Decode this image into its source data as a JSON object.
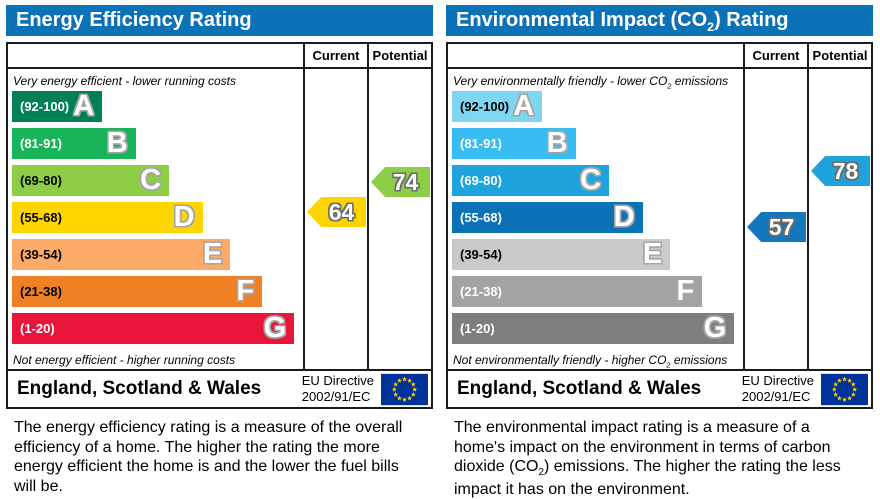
{
  "columns": {
    "current_label": "Current",
    "potential_label": "Potential"
  },
  "footer": {
    "region_label": "England, Scotland & Wales",
    "directive_line1": "EU Directive",
    "directive_line2": "2002/91/EC",
    "flag_blue": "#003399",
    "flag_star": "#ffcc00"
  },
  "header_bar_color": "#0c72b8",
  "chart_data": [
    {
      "type": "bar",
      "id": "energy-efficiency-rating",
      "title_segments": [
        {
          "t": "Energy Efficiency Rating"
        }
      ],
      "header_color": "#0c72b8",
      "top_label_segments": [
        {
          "t": "Very energy efficient - lower running costs"
        }
      ],
      "bottom_label_segments": [
        {
          "t": "Not energy efficient - higher running costs"
        }
      ],
      "bands": [
        {
          "letter": "A",
          "range_label": "(92-100)",
          "lo": 92,
          "hi": 100,
          "width_pct": 31,
          "color": "#008054",
          "label_color": "#ffffff"
        },
        {
          "letter": "B",
          "range_label": "(81-91)",
          "lo": 81,
          "hi": 91,
          "width_pct": 42.5,
          "color": "#19b459",
          "label_color": "#ffffff"
        },
        {
          "letter": "C",
          "range_label": "(69-80)",
          "lo": 69,
          "hi": 80,
          "width_pct": 54,
          "color": "#8dce46",
          "label_color": "#000000"
        },
        {
          "letter": "D",
          "range_label": "(55-68)",
          "lo": 55,
          "hi": 68,
          "width_pct": 65.5,
          "color": "#ffd500",
          "label_color": "#000000"
        },
        {
          "letter": "E",
          "range_label": "(39-54)",
          "lo": 39,
          "hi": 54,
          "width_pct": 75,
          "color": "#fcaa65",
          "label_color": "#000000"
        },
        {
          "letter": "F",
          "range_label": "(21-38)",
          "lo": 21,
          "hi": 38,
          "width_pct": 86,
          "color": "#ef8023",
          "label_color": "#000000"
        },
        {
          "letter": "G",
          "range_label": "(1-20)",
          "lo": 1,
          "hi": 20,
          "width_pct": 97,
          "color": "#e9153b",
          "label_color": "#ffffff"
        }
      ],
      "current": {
        "value": 64,
        "band": "D",
        "color": "#ffd500"
      },
      "potential": {
        "value": 74,
        "band": "C",
        "color": "#8dce46"
      },
      "description_segments": [
        {
          "t": "The energy efficiency rating is a measure of the overall efficiency of a home. The higher the rating the more energy efficient the home is and the lower the fuel bills will be."
        }
      ]
    },
    {
      "type": "bar",
      "id": "environmental-impact-co2-rating",
      "title_segments": [
        {
          "t": "Environmental Impact (CO"
        },
        {
          "sub": "2"
        },
        {
          "t": ") Rating"
        }
      ],
      "header_color": "#0c72b8",
      "top_label_segments": [
        {
          "t": "Very environmentally friendly - lower CO"
        },
        {
          "sub": "2"
        },
        {
          "t": " emissions"
        }
      ],
      "bottom_label_segments": [
        {
          "t": "Not environmentally friendly - higher CO"
        },
        {
          "sub": "2"
        },
        {
          "t": " emissions"
        }
      ],
      "bands": [
        {
          "letter": "A",
          "range_label": "(92-100)",
          "lo": 92,
          "hi": 100,
          "width_pct": 31,
          "color": "#7fd6f2",
          "label_color": "#000000"
        },
        {
          "letter": "B",
          "range_label": "(81-91)",
          "lo": 81,
          "hi": 91,
          "width_pct": 42.5,
          "color": "#38bdf2",
          "label_color": "#ffffff"
        },
        {
          "letter": "C",
          "range_label": "(69-80)",
          "lo": 69,
          "hi": 80,
          "width_pct": 54,
          "color": "#1fa3dc",
          "label_color": "#ffffff"
        },
        {
          "letter": "D",
          "range_label": "(55-68)",
          "lo": 55,
          "hi": 68,
          "width_pct": 65.5,
          "color": "#0c72b8",
          "label_color": "#ffffff"
        },
        {
          "letter": "E",
          "range_label": "(39-54)",
          "lo": 39,
          "hi": 54,
          "width_pct": 75,
          "color": "#cacaca",
          "label_color": "#000000"
        },
        {
          "letter": "F",
          "range_label": "(21-38)",
          "lo": 21,
          "hi": 38,
          "width_pct": 86,
          "color": "#a3a3a4",
          "label_color": "#ffffff"
        },
        {
          "letter": "G",
          "range_label": "(1-20)",
          "lo": 1,
          "hi": 20,
          "width_pct": 97,
          "color": "#7e7e7e",
          "label_color": "#ffffff"
        }
      ],
      "current": {
        "value": 57,
        "band": "D",
        "color": "#1277bd"
      },
      "potential": {
        "value": 78,
        "band": "C",
        "color": "#1fa3dc"
      },
      "description_segments": [
        {
          "t": "The environmental impact rating is a measure of a home's impact on the environment in terms of carbon dioxide (CO"
        },
        {
          "sub": "2"
        },
        {
          "t": ") emissions. The higher the rating the less impact it has on the environment."
        }
      ]
    }
  ]
}
